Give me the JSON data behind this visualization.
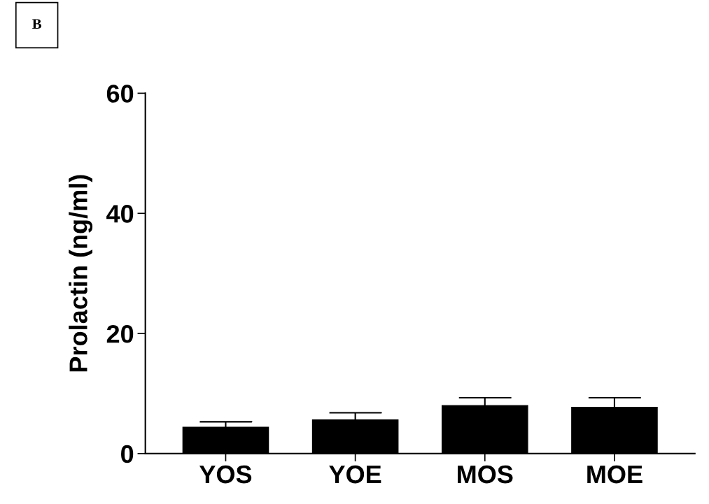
{
  "chart_data": {
    "type": "bar",
    "ylabel": "Prolactin (ng/ml)",
    "categories": [
      "YOS",
      "YOE",
      "MOS",
      "MOE"
    ],
    "values": [
      4.4,
      5.6,
      8.0,
      7.7
    ],
    "errors": [
      0.9,
      1.2,
      1.3,
      1.6
    ],
    "color": "#000000",
    "ylim": [
      0,
      60
    ],
    "yticks": [
      0,
      20,
      40,
      60
    ],
    "grid": false,
    "annotations": [
      "B"
    ]
  }
}
